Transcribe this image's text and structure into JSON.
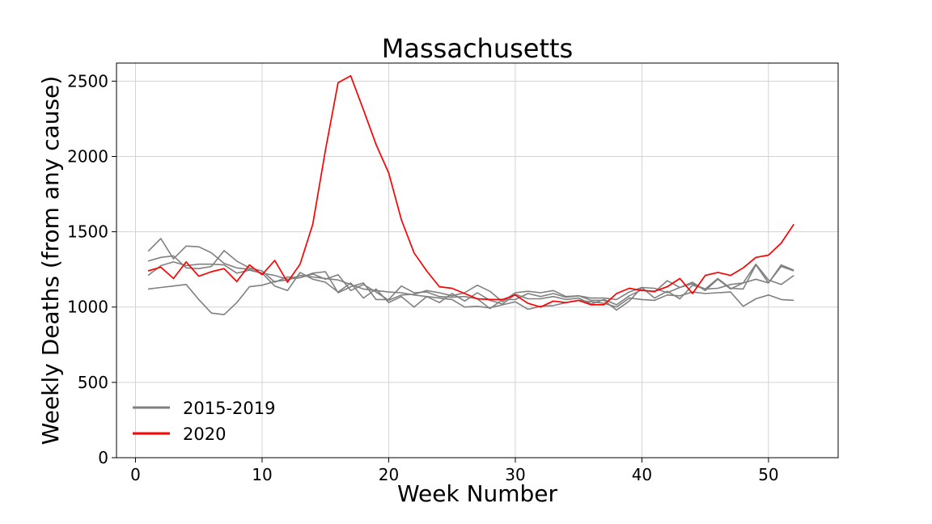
{
  "chart_data": {
    "type": "line",
    "title": "Massachusetts",
    "xlabel": "Week Number",
    "ylabel": "Weekly Deaths (from any cause)",
    "xlim": [
      -1.5,
      55.5
    ],
    "ylim": [
      0,
      2620
    ],
    "xticks": [
      0,
      10,
      20,
      30,
      40,
      50
    ],
    "yticks": [
      0,
      500,
      1000,
      1500,
      2000,
      2500
    ],
    "grid": true,
    "legend_position": "lower-left",
    "legend": [
      {
        "label": "2015-2019",
        "color": "#808080"
      },
      {
        "label": "2020",
        "color": "#ff0000"
      }
    ],
    "x": [
      1,
      2,
      3,
      4,
      5,
      6,
      7,
      8,
      9,
      10,
      11,
      12,
      13,
      14,
      15,
      16,
      17,
      18,
      19,
      20,
      21,
      22,
      23,
      24,
      25,
      26,
      27,
      28,
      29,
      30,
      31,
      32,
      33,
      34,
      35,
      36,
      37,
      38,
      39,
      40,
      41,
      42,
      43,
      44,
      45,
      46,
      47,
      48,
      49,
      50,
      51,
      52
    ],
    "series": [
      {
        "group": "2015-2019",
        "color": "#808080",
        "values": [
          1120,
          1130,
          1140,
          1150,
          1050,
          960,
          950,
          1030,
          1135,
          1145,
          1170,
          1180,
          1210,
          1200,
          1190,
          1180,
          1150,
          1120,
          1110,
          1100,
          1095,
          1080,
          1070,
          1060,
          1050,
          1000,
          1005,
          995,
          1015,
          1035,
          985,
          1005,
          1010,
          1030,
          1045,
          1035,
          1025,
          1000,
          1060,
          1050,
          1045,
          1080,
          1075,
          1100,
          1090,
          1095,
          1100,
          1005,
          1055,
          1080,
          1050,
          1045
        ]
      },
      {
        "group": "2015-2019",
        "color": "#808080",
        "values": [
          1370,
          1455,
          1320,
          1405,
          1400,
          1360,
          1290,
          1260,
          1250,
          1225,
          1210,
          1185,
          1195,
          1225,
          1235,
          1095,
          1135,
          1160,
          1050,
          1050,
          1140,
          1095,
          1100,
          1070,
          1065,
          1070,
          1055,
          990,
          1050,
          1050,
          1090,
          1070,
          1090,
          1065,
          1075,
          1060,
          1060,
          1050,
          1100,
          1130,
          1125,
          1095,
          1130,
          1155,
          1120,
          1125,
          1150,
          1160,
          1285,
          1180,
          1150,
          1210
        ]
      },
      {
        "group": "2015-2019",
        "color": "#808080",
        "values": [
          1305,
          1330,
          1340,
          1260,
          1255,
          1270,
          1375,
          1305,
          1260,
          1240,
          1165,
          1200,
          1195,
          1220,
          1185,
          1215,
          1110,
          1150,
          1100,
          1045,
          1080,
          1085,
          1110,
          1095,
          1075,
          1095,
          1145,
          1105,
          1035,
          1095,
          1105,
          1095,
          1110,
          1070,
          1075,
          1045,
          1045,
          980,
          1040,
          1130,
          1060,
          1105,
          1055,
          1145,
          1120,
          1190,
          1125,
          1120,
          1280,
          1160,
          1280,
          1245
        ]
      },
      {
        "group": "2015-2019",
        "color": "#808080",
        "values": [
          1210,
          1275,
          1300,
          1275,
          1285,
          1285,
          1280,
          1225,
          1245,
          1225,
          1140,
          1110,
          1230,
          1185,
          1165,
          1100,
          1160,
          1060,
          1120,
          1030,
          1070,
          1000,
          1070,
          1030,
          1090,
          1040,
          1095,
          1045,
          1020,
          1085,
          1055,
          1055,
          1070,
          1050,
          1060,
          1020,
          1050,
          1015,
          1075,
          1115,
          1100,
          1175,
          1130,
          1165,
          1110,
          1185,
          1120,
          1160,
          1185,
          1160,
          1270,
          1240
        ]
      },
      {
        "group": "2020",
        "color": "#ff0000",
        "values": [
          1240,
          1265,
          1190,
          1300,
          1205,
          1235,
          1255,
          1170,
          1280,
          1215,
          1310,
          1165,
          1285,
          1550,
          2040,
          2490,
          2535,
          2310,
          2080,
          1890,
          1580,
          1360,
          1240,
          1135,
          1125,
          1090,
          1055,
          1050,
          1050,
          1080,
          1025,
          1000,
          1040,
          1030,
          1045,
          1015,
          1015,
          1090,
          1125,
          1110,
          1105,
          1135,
          1190,
          1090,
          1210,
          1230,
          1210,
          1260,
          1330,
          1345,
          1425,
          1550
        ]
      }
    ]
  }
}
